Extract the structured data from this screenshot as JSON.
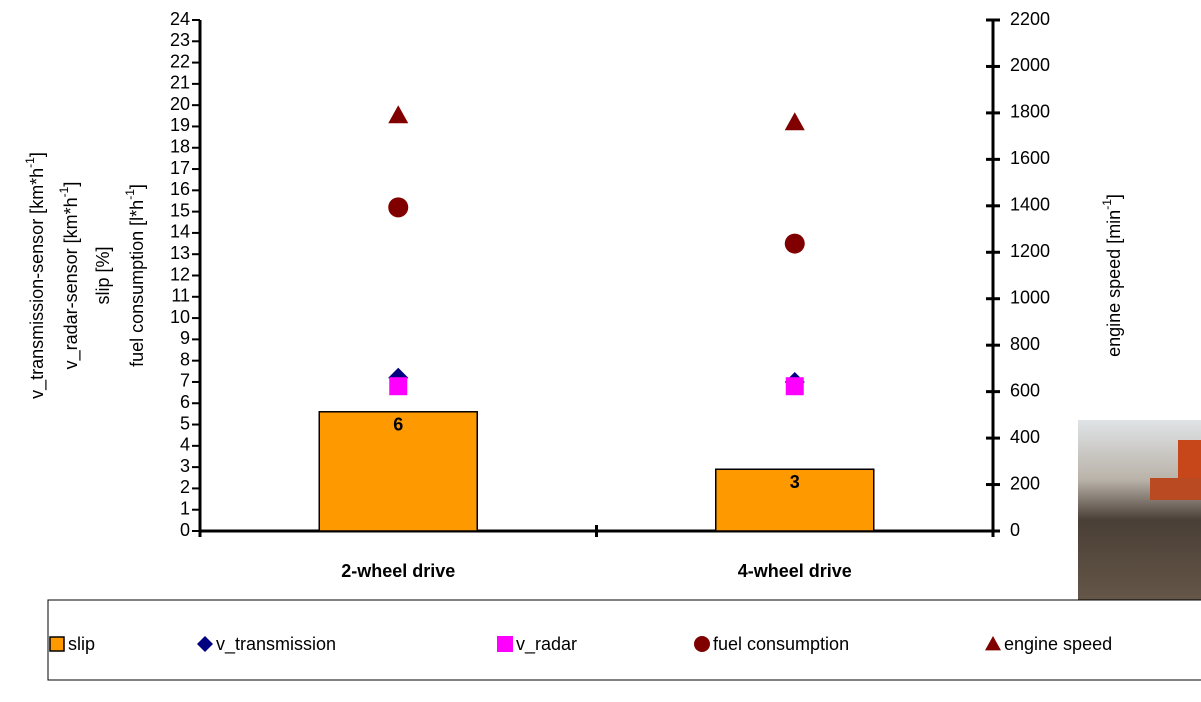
{
  "chart_data": {
    "type": "bar",
    "categories": [
      "2-wheel drive",
      "4-wheel drive"
    ],
    "y_axis_labels": [
      {
        "text": "v_transmission-sensor [km*h",
        "sup": "-1",
        "end": "]"
      },
      {
        "text": "v_radar-sensor [km*h",
        "sup": "-1",
        "end": "]"
      },
      {
        "text": "slip [%]"
      },
      {
        "text": "fuel consumption [l*h",
        "sup": "-1",
        "end": "]"
      }
    ],
    "y2_axis_label": {
      "text": "engine speed [min",
      "sup": "-1",
      "end": "]"
    },
    "ylim": [
      0,
      24
    ],
    "yticks": [
      0,
      1,
      2,
      3,
      4,
      5,
      6,
      7,
      8,
      9,
      10,
      11,
      12,
      13,
      14,
      15,
      16,
      17,
      18,
      19,
      20,
      21,
      22,
      23,
      24
    ],
    "y2lim": [
      0,
      2200
    ],
    "y2ticks": [
      0,
      200,
      400,
      600,
      800,
      1000,
      1200,
      1400,
      1600,
      1800,
      2000,
      2200
    ],
    "series": [
      {
        "name": "slip",
        "kind": "bar",
        "color": "#ff9900",
        "values": [
          5.6,
          2.9
        ],
        "value_labels": [
          "6",
          "3"
        ]
      },
      {
        "name": "v_transmission",
        "kind": "diamond",
        "color": "#000080",
        "values": [
          7.2,
          7.0
        ]
      },
      {
        "name": "v_radar",
        "kind": "square",
        "color": "#ff00ff",
        "values": [
          6.8,
          6.8
        ]
      },
      {
        "name": "fuel consumption",
        "kind": "circle",
        "color": "#800000",
        "values": [
          15.2,
          13.5
        ]
      },
      {
        "name": "engine speed",
        "kind": "triangle",
        "color": "#800000",
        "values": [
          1790,
          1760
        ],
        "axis": "y2"
      }
    ]
  }
}
